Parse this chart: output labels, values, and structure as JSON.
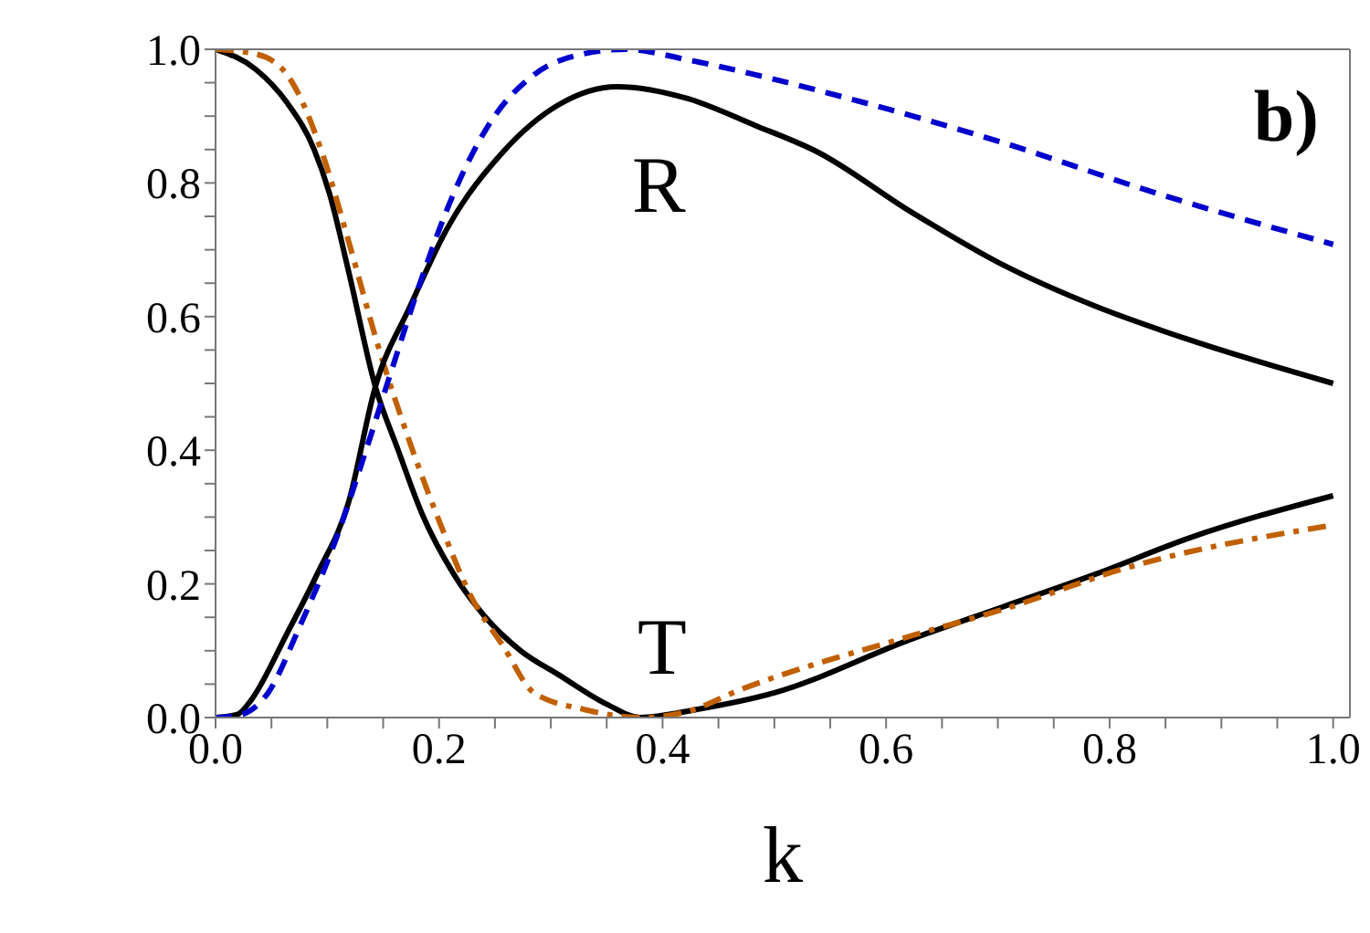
{
  "chart_data": {
    "type": "line",
    "xlabel": "k",
    "xlim": [
      0,
      1.015
    ],
    "ylim": [
      0,
      1
    ],
    "xticks": [
      {
        "value": 0,
        "label": "0.0"
      },
      {
        "value": 0.05,
        "label": null
      },
      {
        "value": 0.1,
        "label": null
      },
      {
        "value": 0.15,
        "label": null
      },
      {
        "value": 0.2,
        "label": "0.2"
      },
      {
        "value": 0.25,
        "label": null
      },
      {
        "value": 0.3,
        "label": null
      },
      {
        "value": 0.35,
        "label": null
      },
      {
        "value": 0.4,
        "label": "0.4"
      },
      {
        "value": 0.45,
        "label": null
      },
      {
        "value": 0.5,
        "label": null
      },
      {
        "value": 0.55,
        "label": null
      },
      {
        "value": 0.6,
        "label": "0.6"
      },
      {
        "value": 0.65,
        "label": null
      },
      {
        "value": 0.7,
        "label": null
      },
      {
        "value": 0.75,
        "label": null
      },
      {
        "value": 0.8,
        "label": "0.8"
      },
      {
        "value": 0.85,
        "label": null
      },
      {
        "value": 0.9,
        "label": null
      },
      {
        "value": 0.95,
        "label": null
      },
      {
        "value": 1,
        "label": "1.0"
      }
    ],
    "yticks": [
      {
        "value": 0,
        "label": "0.0"
      },
      {
        "value": 0.05,
        "label": null
      },
      {
        "value": 0.1,
        "label": null
      },
      {
        "value": 0.15,
        "label": null
      },
      {
        "value": 0.2,
        "label": "0.2"
      },
      {
        "value": 0.25,
        "label": null
      },
      {
        "value": 0.3,
        "label": null
      },
      {
        "value": 0.35,
        "label": null
      },
      {
        "value": 0.4,
        "label": "0.4"
      },
      {
        "value": 0.45,
        "label": null
      },
      {
        "value": 0.5,
        "label": null
      },
      {
        "value": 0.55,
        "label": null
      },
      {
        "value": 0.6,
        "label": "0.6"
      },
      {
        "value": 0.65,
        "label": null
      },
      {
        "value": 0.7,
        "label": null
      },
      {
        "value": 0.75,
        "label": null
      },
      {
        "value": 0.8,
        "label": "0.8"
      },
      {
        "value": 0.85,
        "label": null
      },
      {
        "value": 0.9,
        "label": null
      },
      {
        "value": 0.95,
        "label": null
      },
      {
        "value": 1,
        "label": "1.0"
      }
    ],
    "marker": "none",
    "series": [
      {
        "color": "#000000",
        "line_style": "solid",
        "x": [
          0,
          0.036,
          0.064,
          0.088,
          0.102,
          0.119,
          0.143,
          0.163,
          0.185,
          0.213,
          0.24,
          0.273,
          0.307,
          0.35,
          0.38,
          0.43,
          0.5,
          0.622,
          0.705,
          0.788,
          0.87,
          1.0
        ],
        "values": [
          1.0,
          0.97,
          0.92,
          0.851,
          0.784,
          0.668,
          0.495,
          0.402,
          0.304,
          0.215,
          0.153,
          0.1,
          0.064,
          0.02,
          0.0,
          0.012,
          0.037,
          0.117,
          0.166,
          0.215,
          0.268,
          0.332
        ]
      },
      {
        "color": "#c06000",
        "line_style": "dashdot",
        "x": [
          0,
          0.036,
          0.064,
          0.097,
          0.119,
          0.146,
          0.174,
          0.202,
          0.229,
          0.257,
          0.285,
          0.33,
          0.38,
          0.42,
          0.47,
          0.622,
          0.705,
          0.815,
          1.0
        ],
        "values": [
          1.0,
          0.993,
          0.962,
          0.837,
          0.713,
          0.553,
          0.411,
          0.286,
          0.18,
          0.108,
          0.037,
          0.012,
          0.0,
          0.008,
          0.042,
          0.122,
          0.162,
          0.224,
          0.288
        ]
      },
      {
        "color": "#000000",
        "line_style": "solid",
        "x": [
          0,
          0.02,
          0.03,
          0.064,
          0.091,
          0.119,
          0.143,
          0.174,
          0.207,
          0.257,
          0.307,
          0.359,
          0.423,
          0.483,
          0.539,
          0.622,
          0.705,
          0.788,
          0.87,
          1.0
        ],
        "values": [
          0,
          0.005,
          0.022,
          0.126,
          0.215,
          0.322,
          0.495,
          0.615,
          0.731,
          0.846,
          0.917,
          0.944,
          0.926,
          0.886,
          0.846,
          0.757,
          0.677,
          0.615,
          0.566,
          0.5
        ]
      },
      {
        "color": "#0000cc",
        "line_style": "dashed",
        "x": [
          0,
          0.02,
          0.047,
          0.075,
          0.108,
          0.135,
          0.157,
          0.185,
          0.213,
          0.246,
          0.285,
          0.329,
          0.367,
          0.423,
          0.483,
          0.547,
          0.705,
          0.843,
          1.0
        ],
        "values": [
          0,
          0.003,
          0.037,
          0.135,
          0.268,
          0.402,
          0.517,
          0.66,
          0.784,
          0.891,
          0.962,
          0.993,
          1.0,
          0.984,
          0.962,
          0.935,
          0.86,
          0.784,
          0.708
        ]
      }
    ],
    "annotations": [
      "R",
      "T",
      "b)"
    ]
  }
}
